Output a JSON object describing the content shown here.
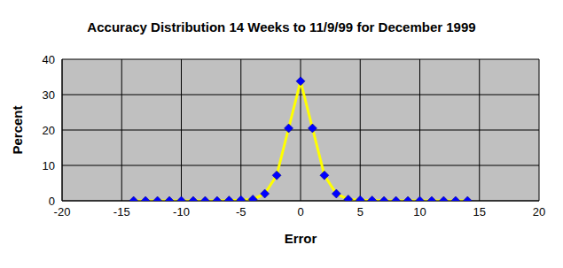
{
  "chart_data": {
    "type": "line",
    "title": "Accuracy Distribution 14 Weeks to 11/9/99 for December 1999",
    "x_label": "Error",
    "y_label": "Percent",
    "x": [
      -14,
      -13,
      -12,
      -11,
      -10,
      -9,
      -8,
      -7,
      -6,
      -5,
      -4,
      -3,
      -2,
      -1,
      0,
      1,
      2,
      3,
      4,
      5,
      6,
      7,
      8,
      9,
      10,
      11,
      12,
      13,
      14
    ],
    "values": [
      0,
      0,
      0,
      0,
      0,
      0,
      0,
      0,
      0.1,
      0.2,
      0.4,
      2,
      7.2,
      20.5,
      33.8,
      20.5,
      7.2,
      2,
      0.4,
      0.2,
      0.1,
      0,
      0,
      0,
      0,
      0,
      0,
      0,
      0
    ],
    "color": "#ffff00",
    "marker": "diamond",
    "xlim": [
      -20,
      20
    ],
    "xticks": [
      -20,
      -15,
      -10,
      -5,
      0,
      5,
      10,
      15,
      20
    ],
    "ylim": [
      0,
      40
    ],
    "yticks": [
      0,
      10,
      20,
      30,
      40
    ],
    "grid": true
  }
}
